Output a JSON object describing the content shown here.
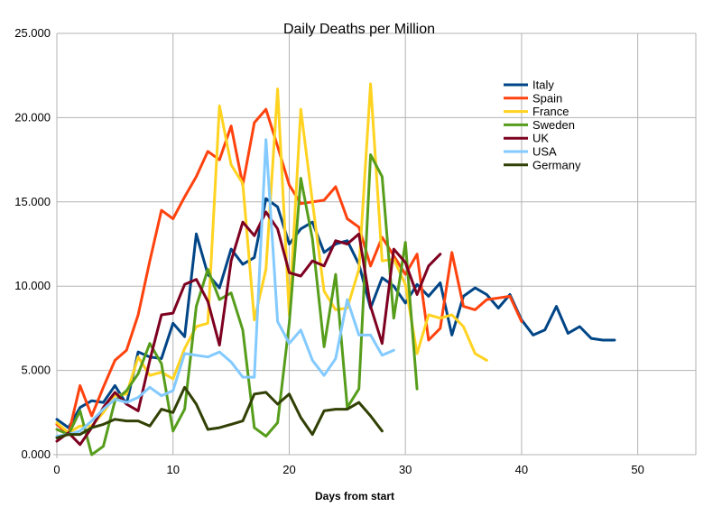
{
  "chart_data": {
    "type": "line",
    "title": "Daily Deaths per Million",
    "xlabel": "Days from start",
    "ylabel": "",
    "xlim": [
      0,
      55
    ],
    "ylim": [
      0,
      25
    ],
    "xticks": [
      0,
      10,
      20,
      30,
      40,
      50
    ],
    "yticks": [
      0,
      5,
      10,
      15,
      20,
      25
    ],
    "ytick_labels": [
      "0.000",
      "5.000",
      "10.000",
      "15.000",
      "20.000",
      "25.000"
    ],
    "grid": true,
    "legend_position": "top-right",
    "series": [
      {
        "name": "Italy",
        "color": "#004586",
        "x": [
          0,
          1,
          2,
          3,
          4,
          5,
          6,
          7,
          8,
          9,
          10,
          11,
          12,
          13,
          14,
          15,
          16,
          17,
          18,
          19,
          20,
          21,
          22,
          23,
          24,
          25,
          26,
          27,
          28,
          29,
          30,
          31,
          32,
          33,
          34,
          35,
          36,
          37,
          38,
          39,
          40,
          41,
          42,
          43,
          44,
          45,
          46,
          47,
          48
        ],
        "y": [
          2.1,
          1.6,
          2.8,
          3.2,
          3.1,
          4.1,
          3.0,
          6.1,
          5.8,
          5.7,
          7.8,
          7.0,
          13.1,
          10.7,
          9.9,
          12.2,
          11.3,
          11.7,
          15.2,
          14.7,
          12.5,
          13.4,
          13.8,
          12.0,
          12.5,
          12.7,
          11.3,
          8.7,
          10.5,
          10.0,
          9.0,
          10.1,
          9.4,
          10.2,
          7.1,
          9.4,
          9.9,
          9.5,
          8.7,
          9.5,
          8.0,
          7.1,
          7.4,
          8.8,
          7.2,
          7.6,
          6.9,
          6.8,
          6.8
        ]
      },
      {
        "name": "Spain",
        "color": "#ff420e",
        "x": [
          0,
          1,
          2,
          3,
          4,
          5,
          6,
          7,
          8,
          9,
          10,
          11,
          12,
          13,
          14,
          15,
          16,
          17,
          18,
          19,
          20,
          21,
          22,
          23,
          24,
          25,
          26,
          27,
          28,
          29,
          30,
          31,
          32,
          33,
          34,
          35,
          36,
          37,
          38,
          39,
          40
        ],
        "y": [
          1.8,
          1.2,
          4.1,
          2.3,
          4.0,
          5.6,
          6.2,
          8.3,
          11.5,
          14.5,
          14.0,
          15.3,
          16.5,
          18.0,
          17.5,
          19.5,
          16.0,
          19.7,
          20.5,
          18.3,
          16.0,
          14.9,
          15.0,
          15.1,
          15.9,
          14.0,
          13.5,
          11.2,
          12.9,
          11.8,
          10.7,
          11.9,
          6.8,
          7.5,
          12.0,
          8.8,
          8.6,
          9.2,
          9.3,
          9.4,
          7.9
        ]
      },
      {
        "name": "France",
        "color": "#ffd320",
        "x": [
          0,
          1,
          2,
          3,
          4,
          5,
          6,
          7,
          8,
          9,
          10,
          11,
          12,
          13,
          14,
          15,
          16,
          17,
          18,
          19,
          20,
          21,
          22,
          23,
          24,
          25,
          26,
          27,
          28,
          29,
          30,
          31,
          32,
          33,
          34,
          35,
          36,
          37
        ],
        "y": [
          1.9,
          1.3,
          1.7,
          1.7,
          2.5,
          3.5,
          3.6,
          5.8,
          4.7,
          4.9,
          4.5,
          6.3,
          7.6,
          7.8,
          20.7,
          17.2,
          16.1,
          8.0,
          11.0,
          21.7,
          8.3,
          20.5,
          15.0,
          9.7,
          8.6,
          8.7,
          11.0,
          22.0,
          11.5,
          11.6,
          10.1,
          6.0,
          8.3,
          8.1,
          8.3,
          7.6,
          6.0,
          5.6
        ]
      },
      {
        "name": "Sweden",
        "color": "#579d1c",
        "x": [
          0,
          1,
          2,
          3,
          4,
          5,
          6,
          7,
          8,
          9,
          10,
          11,
          12,
          13,
          14,
          15,
          16,
          17,
          18,
          19,
          20,
          21,
          22,
          23,
          24,
          25,
          26,
          27,
          28,
          29,
          30,
          31
        ],
        "y": [
          1.5,
          1.2,
          2.6,
          0.0,
          0.5,
          3.2,
          3.8,
          4.8,
          6.6,
          5.4,
          1.4,
          2.7,
          8.8,
          11.0,
          9.2,
          9.6,
          7.4,
          1.6,
          1.1,
          1.9,
          7.8,
          16.4,
          12.8,
          6.4,
          10.7,
          2.8,
          3.9,
          17.8,
          16.5,
          8.1,
          12.6,
          3.9
        ]
      },
      {
        "name": "UK",
        "color": "#7e0021",
        "x": [
          0,
          1,
          2,
          3,
          4,
          5,
          6,
          7,
          8,
          9,
          10,
          11,
          12,
          13,
          14,
          15,
          16,
          17,
          18,
          19,
          20,
          21,
          22,
          23,
          24,
          25,
          26,
          27,
          28,
          29,
          30,
          31,
          32,
          33
        ],
        "y": [
          0.8,
          1.3,
          0.6,
          1.6,
          2.8,
          3.7,
          3.0,
          2.6,
          5.6,
          8.3,
          8.4,
          10.1,
          10.4,
          9.1,
          6.5,
          11.5,
          13.8,
          13.0,
          14.4,
          13.4,
          10.8,
          10.6,
          11.5,
          11.2,
          12.7,
          12.5,
          13.1,
          8.8,
          6.6,
          12.2,
          11.4,
          9.5,
          11.2,
          11.9
        ]
      },
      {
        "name": "USA",
        "color": "#83caff",
        "x": [
          0,
          1,
          2,
          3,
          4,
          5,
          6,
          7,
          8,
          9,
          10,
          11,
          12,
          13,
          14,
          15,
          16,
          17,
          18,
          19,
          20,
          21,
          22,
          23,
          24,
          25,
          26,
          27,
          28,
          29
        ],
        "y": [
          1.1,
          1.2,
          1.4,
          2.0,
          2.7,
          3.3,
          3.1,
          3.4,
          4.0,
          3.5,
          3.8,
          6.0,
          5.9,
          5.8,
          6.1,
          5.5,
          4.6,
          4.6,
          18.7,
          7.9,
          6.6,
          7.4,
          5.6,
          4.7,
          5.7,
          9.2,
          7.1,
          7.1,
          5.9,
          6.2
        ]
      },
      {
        "name": "Germany",
        "color": "#314004",
        "x": [
          0,
          1,
          2,
          3,
          4,
          5,
          6,
          7,
          8,
          9,
          10,
          11,
          12,
          13,
          14,
          15,
          16,
          17,
          18,
          19,
          20,
          21,
          22,
          23,
          24,
          25,
          26,
          27,
          28
        ],
        "y": [
          1.0,
          1.2,
          1.2,
          1.6,
          1.8,
          2.1,
          2.0,
          2.0,
          1.7,
          2.7,
          2.5,
          4.0,
          3.0,
          1.5,
          1.6,
          1.8,
          2.0,
          3.6,
          3.7,
          3.0,
          3.6,
          2.2,
          1.2,
          2.6,
          2.7,
          2.7,
          3.1,
          2.3,
          1.4
        ]
      }
    ]
  }
}
